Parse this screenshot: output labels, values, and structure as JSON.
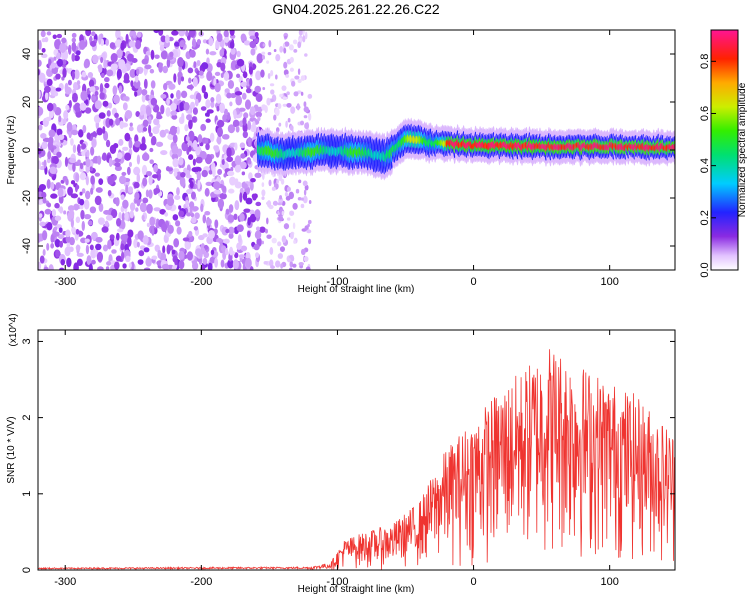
{
  "title": "GN04.2025.261.22.26.C22",
  "chart_data": [
    {
      "type": "heatmap",
      "id": "spectrogram",
      "xlabel": "Height of straight line (km)",
      "ylabel": "Frequency (Hz)",
      "xlim": [
        -320,
        148
      ],
      "ylim": [
        -50,
        50
      ],
      "xticks": [
        -300,
        -200,
        -100,
        0,
        100
      ],
      "yticks": [
        -40,
        -20,
        0,
        20,
        40
      ],
      "colorbar": {
        "label": "Normalized spectral amplitude",
        "range": [
          0,
          0.92
        ],
        "ticks": [
          0.0,
          0.2,
          0.4,
          0.6,
          0.8
        ],
        "tick_labels": [
          "0.0",
          "0.2",
          "0.4",
          "0.6",
          "0.8"
        ]
      },
      "features": [
        {
          "name": "broadband noise region",
          "x_range": [
            -320,
            -155
          ],
          "y_range": [
            -50,
            50
          ],
          "amplitude": 0.1
        },
        {
          "name": "sparse noise region",
          "x_range": [
            -155,
            -120
          ],
          "y_range": [
            -50,
            50
          ],
          "amplitude": 0.05
        },
        {
          "name": "signal track",
          "x_range": [
            -158,
            148
          ],
          "center_freq_hz": [
            [
              -158,
              0
            ],
            [
              -140,
              -2
            ],
            [
              -110,
              0
            ],
            [
              -80,
              -1
            ],
            [
              -65,
              -3
            ],
            [
              -50,
              5
            ],
            [
              -30,
              3
            ],
            [
              0,
              2
            ],
            [
              50,
              1.5
            ],
            [
              100,
              1.5
            ],
            [
              148,
              1
            ]
          ],
          "peak_amplitude": 0.92
        }
      ]
    },
    {
      "type": "line",
      "id": "snr",
      "xlabel": "Height of straight line (km)",
      "ylabel": "SNR (10 * V/V)",
      "multiplier": "(x10^4)",
      "xlim": [
        -320,
        148
      ],
      "ylim": [
        0,
        3.15
      ],
      "xticks": [
        -300,
        -200,
        -100,
        0,
        100
      ],
      "yticks": [
        0,
        1,
        2,
        3
      ],
      "color": "#ef3430",
      "series": [
        {
          "name": "SNR envelope",
          "x": [
            -320,
            -120,
            -105,
            -95,
            -80,
            -60,
            -40,
            -20,
            0,
            20,
            40,
            55,
            80,
            100,
            120,
            148
          ],
          "y": [
            0.03,
            0.04,
            0.1,
            0.4,
            0.5,
            0.6,
            0.9,
            1.6,
            2.0,
            2.4,
            2.7,
            3.0,
            2.7,
            2.5,
            2.3,
            1.8
          ]
        }
      ]
    }
  ]
}
